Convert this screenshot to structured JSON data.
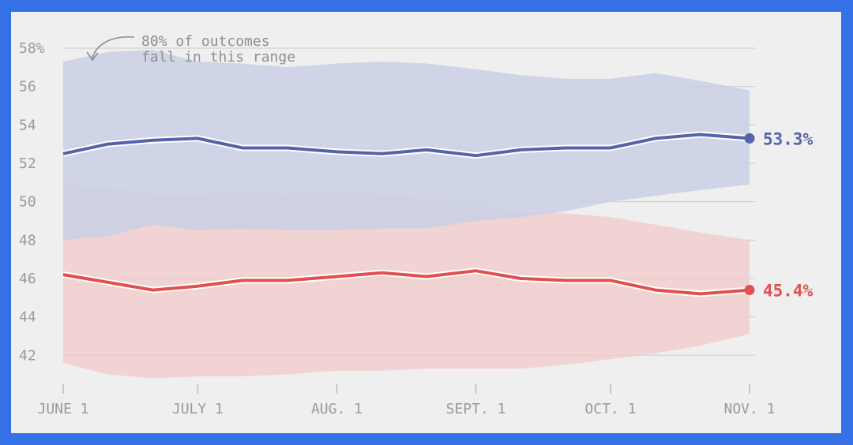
{
  "annotation": {
    "line1": "80% of outcomes",
    "line2": "fall in this range"
  },
  "colors": {
    "background": "#efefef",
    "frame": "#3471e6",
    "blue_line": "#5563a8",
    "blue_band": "#c9d0e4",
    "red_line": "#e2504d",
    "red_band": "#f3c9c9",
    "grid": "#cccccc",
    "tick_text": "#9a9a9a"
  },
  "chart_data": {
    "type": "line",
    "title": "",
    "xlabel": "",
    "ylabel": "",
    "ylim": [
      41,
      59
    ],
    "grid": true,
    "x_ticks": [
      "JUNE 1",
      "JULY 1",
      "AUG. 1",
      "SEPT. 1",
      "OCT. 1",
      "NOV. 1"
    ],
    "x_tick_dates": [
      "2020-06-01",
      "2020-07-01",
      "2020-08-01",
      "2020-09-01",
      "2020-10-01",
      "2020-11-01"
    ],
    "y_ticks": [
      42,
      44,
      46,
      48,
      50,
      52,
      54,
      56,
      58
    ],
    "y_tick_labels": [
      "42",
      "44",
      "46",
      "48",
      "50",
      "52",
      "54",
      "56",
      "58%"
    ],
    "x": [
      "2020-06-01",
      "2020-06-11",
      "2020-06-21",
      "2020-07-01",
      "2020-07-11",
      "2020-07-21",
      "2020-08-01",
      "2020-08-11",
      "2020-08-21",
      "2020-09-01",
      "2020-09-11",
      "2020-09-21",
      "2020-10-01",
      "2020-10-11",
      "2020-10-21",
      "2020-11-01"
    ],
    "series": [
      {
        "values": [
          52.5,
          53.0,
          53.2,
          53.3,
          52.8,
          52.8,
          52.6,
          52.5,
          52.7,
          52.4,
          52.7,
          52.8,
          52.8,
          53.3,
          53.5,
          53.3
        ],
        "band_low": [
          48.0,
          48.2,
          48.8,
          48.5,
          48.6,
          48.5,
          48.5,
          48.6,
          48.6,
          49.0,
          49.2,
          49.5,
          50.0,
          50.3,
          50.6,
          50.9
        ],
        "band_high": [
          57.3,
          57.8,
          57.9,
          57.3,
          57.2,
          57.0,
          57.2,
          57.3,
          57.2,
          56.9,
          56.6,
          56.4,
          56.4,
          56.7,
          56.3,
          55.8
        ],
        "end_label": "53.3%"
      },
      {
        "values": [
          46.2,
          45.8,
          45.4,
          45.6,
          45.9,
          45.9,
          46.1,
          46.3,
          46.1,
          46.4,
          46.0,
          45.9,
          45.9,
          45.4,
          45.2,
          45.4
        ],
        "band_low": [
          41.6,
          41.0,
          40.8,
          40.9,
          40.9,
          41.0,
          41.2,
          41.2,
          41.3,
          41.3,
          41.3,
          41.5,
          41.8,
          42.1,
          42.5,
          43.1
        ],
        "band_high": [
          50.9,
          50.7,
          50.4,
          50.4,
          50.5,
          50.4,
          50.6,
          50.4,
          50.1,
          49.8,
          49.5,
          49.4,
          49.2,
          48.8,
          48.4,
          48.0
        ],
        "end_label": "45.4%"
      }
    ]
  }
}
